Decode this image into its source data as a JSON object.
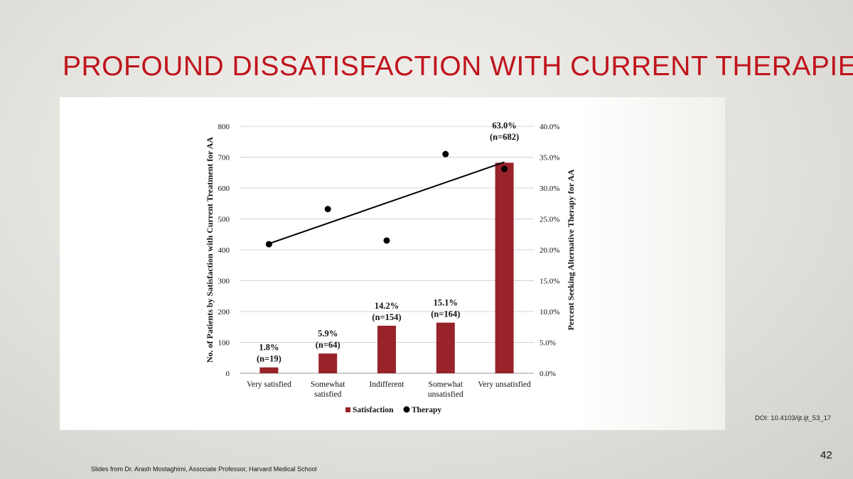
{
  "slide": {
    "title": "PROFOUND DISSATISFACTION WITH CURRENT THERAPIES",
    "doi": "DOI: 10.4103/ijt.ijt_53_17",
    "page_number": "42",
    "footer": "Slides from Dr. Arash Mostaghimi, Associate Professor, Harvard Medical School"
  },
  "chart_data": {
    "type": "bar",
    "categories": [
      [
        "Very satisfied"
      ],
      [
        "Somewhat",
        "satisfied"
      ],
      [
        "Indifferent"
      ],
      [
        "Somewhat",
        "unsatisfied"
      ],
      [
        "Very unsatisfied"
      ]
    ],
    "series": [
      {
        "name": "Satisfaction",
        "type": "bar",
        "axis": "left",
        "values": [
          19,
          64,
          154,
          164,
          682
        ],
        "color": "#98232a",
        "labels": [
          [
            "1.8%",
            "(n=19)"
          ],
          [
            "5.9%",
            "(n=64)"
          ],
          [
            "14.2%",
            "(n=154)"
          ],
          [
            "15.1%",
            "(n=164)"
          ],
          [
            "63.0%",
            "(n=682)"
          ]
        ]
      },
      {
        "name": "Therapy",
        "type": "scatter",
        "axis": "right",
        "values": [
          20.9,
          26.6,
          21.5,
          35.5,
          33.1
        ],
        "color": "#000000",
        "trendline": [
          21.0,
          34.2
        ]
      }
    ],
    "ylabel": "No. of Patients by Satisfaction with Current Treatment for AA",
    "y2label": "Percent Seeking Alternative Therapy for AA",
    "ylim": [
      0,
      800
    ],
    "yticks": [
      "0",
      "100",
      "200",
      "300",
      "400",
      "500",
      "600",
      "700",
      "800"
    ],
    "y2lim": [
      0,
      40
    ],
    "y2ticks": [
      "0.0%",
      "5.0%",
      "10.0%",
      "15.0%",
      "20.0%",
      "25.0%",
      "30.0%",
      "35.0%",
      "40.0%"
    ],
    "grid": true,
    "legend": "bottom"
  }
}
